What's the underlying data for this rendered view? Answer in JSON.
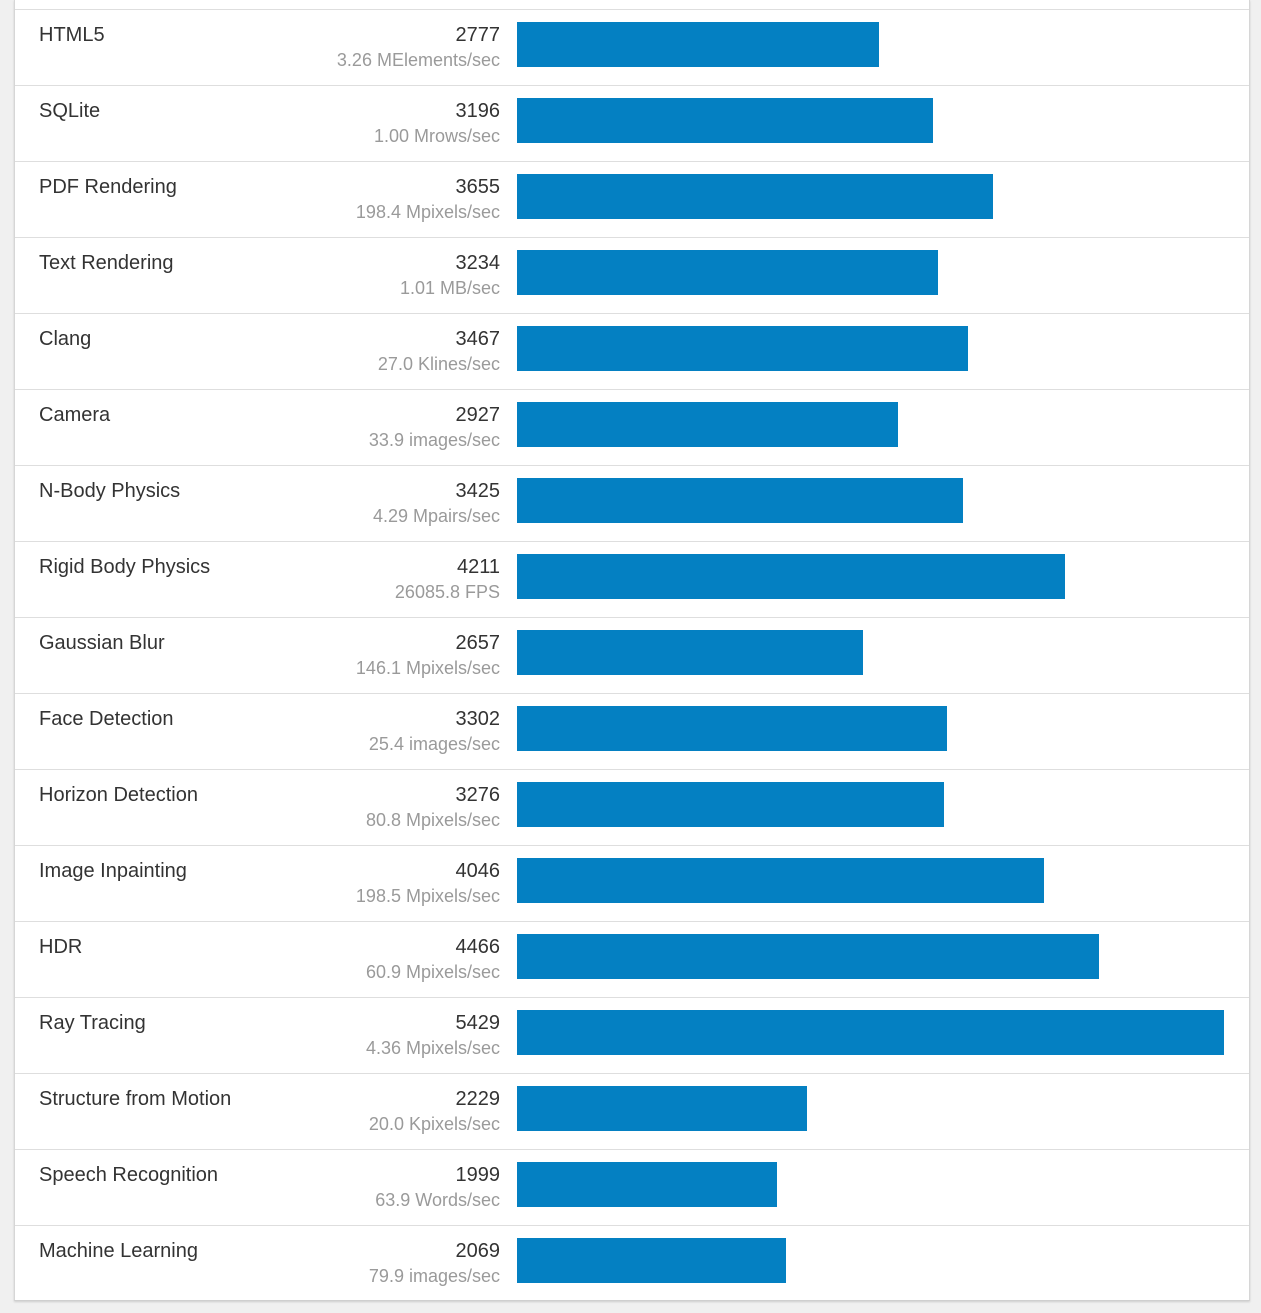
{
  "chart_data": {
    "type": "bar",
    "orientation": "horizontal",
    "bar_color": "#0480c2",
    "max_value": 5429,
    "categories": [
      "HTML5",
      "SQLite",
      "PDF Rendering",
      "Text Rendering",
      "Clang",
      "Camera",
      "N-Body Physics",
      "Rigid Body Physics",
      "Gaussian Blur",
      "Face Detection",
      "Horizon Detection",
      "Image Inpainting",
      "HDR",
      "Ray Tracing",
      "Structure from Motion",
      "Speech Recognition",
      "Machine Learning"
    ],
    "values": [
      2777,
      3196,
      3655,
      3234,
      3467,
      2927,
      3425,
      4211,
      2657,
      3302,
      3276,
      4046,
      4466,
      5429,
      2229,
      1999,
      2069
    ],
    "rates": [
      "3.26 MElements/sec",
      "1.00 Mrows/sec",
      "198.4 Mpixels/sec",
      "1.01 MB/sec",
      "27.0 Klines/sec",
      "33.9 images/sec",
      "4.29 Mpairs/sec",
      "26085.8 FPS",
      "146.1 Mpixels/sec",
      "25.4 images/sec",
      "80.8 Mpixels/sec",
      "198.5 Mpixels/sec",
      "60.9 Mpixels/sec",
      "4.36 Mpixels/sec",
      "20.0 Kpixels/sec",
      "63.9 Words/sec",
      "79.9 images/sec"
    ]
  }
}
